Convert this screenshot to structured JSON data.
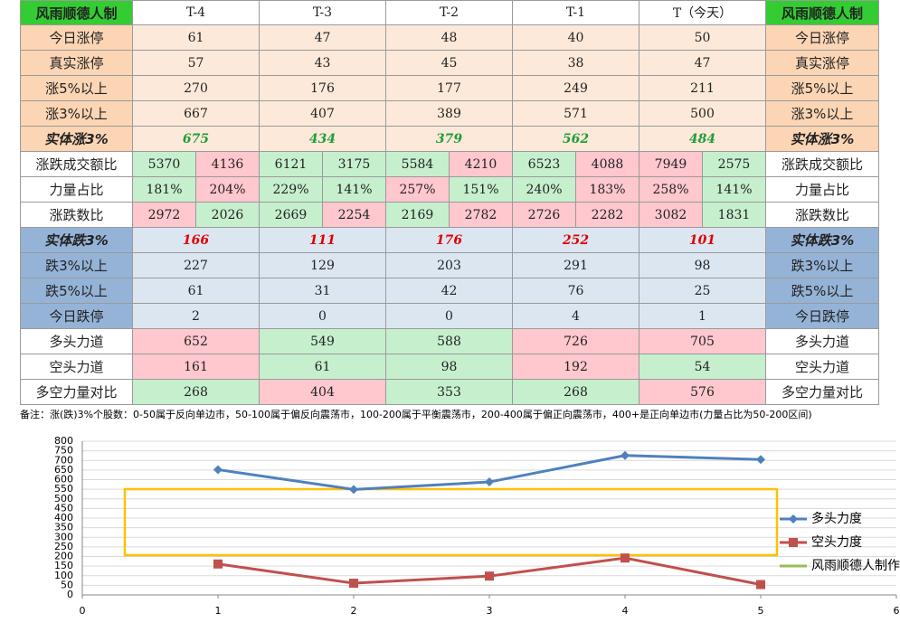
{
  "table": {
    "header": [
      "风雨顺德人制",
      "T-4",
      "T-3",
      "T-2",
      "T-1",
      "T（今天）",
      "风雨顺德人制"
    ],
    "rows": [
      {
        "kind": "up",
        "label": "今日涨停",
        "cells": [
          "61",
          "47",
          "48",
          "40",
          "50"
        ]
      },
      {
        "kind": "up",
        "label": "真实涨停",
        "cells": [
          "57",
          "43",
          "45",
          "38",
          "47"
        ]
      },
      {
        "kind": "up",
        "label": "涨5%以上",
        "cells": [
          "270",
          "176",
          "177",
          "249",
          "211"
        ]
      },
      {
        "kind": "up",
        "label": "涨3%以上",
        "cells": [
          "667",
          "407",
          "389",
          "571",
          "500"
        ]
      },
      {
        "kind": "upsum",
        "label": "实体涨3%",
        "cells": [
          "675",
          "434",
          "379",
          "562",
          "484"
        ]
      },
      {
        "kind": "pair",
        "label": "涨跌成交额比",
        "cells": [
          "5370",
          "4136",
          "6121",
          "3175",
          "5584",
          "4210",
          "6523",
          "4088",
          "7949",
          "2575"
        ],
        "fills": [
          "#c6efce",
          "#ffc7ce",
          "#c6efce",
          "#c6efce",
          "#c6efce",
          "#ffc7ce",
          "#c6efce",
          "#ffc7ce",
          "#ffc7ce",
          "#c6efce"
        ]
      },
      {
        "kind": "pair",
        "label": "力量占比",
        "cells": [
          "181%",
          "204%",
          "229%",
          "141%",
          "257%",
          "151%",
          "240%",
          "183%",
          "258%",
          "141%"
        ],
        "fills": [
          "#c6efce",
          "#ffc7ce",
          "#c6efce",
          "#c6efce",
          "#ffc7ce",
          "#c6efce",
          "#c6efce",
          "#ffc7ce",
          "#ffc7ce",
          "#c6efce"
        ]
      },
      {
        "kind": "pair",
        "label": "涨跌数比",
        "cells": [
          "2972",
          "2026",
          "2669",
          "2254",
          "2169",
          "2782",
          "2726",
          "2282",
          "3082",
          "1831"
        ],
        "fills": [
          "#ffc7ce",
          "#c6efce",
          "#c6efce",
          "#ffc7ce",
          "#c6efce",
          "#ffc7ce",
          "#ffc7ce",
          "#ffc7ce",
          "#ffc7ce",
          "#c6efce"
        ]
      },
      {
        "kind": "downsum",
        "label": "实体跌3%",
        "cells": [
          "166",
          "111",
          "176",
          "252",
          "101"
        ]
      },
      {
        "kind": "down",
        "label": "跌3%以上",
        "cells": [
          "227",
          "129",
          "203",
          "291",
          "98"
        ]
      },
      {
        "kind": "down",
        "label": "跌5%以上",
        "cells": [
          "61",
          "31",
          "42",
          "76",
          "25"
        ]
      },
      {
        "kind": "down",
        "label": "今日跌停",
        "cells": [
          "2",
          "0",
          "0",
          "4",
          "1"
        ]
      },
      {
        "kind": "plain",
        "label": "多头力道",
        "cells": [
          "652",
          "549",
          "588",
          "726",
          "705"
        ],
        "fills": [
          "#ffc7ce",
          "#c6efce",
          "#c6efce",
          "#ffc7ce",
          "#ffc7ce"
        ]
      },
      {
        "kind": "plain",
        "label": "空头力道",
        "cells": [
          "161",
          "61",
          "98",
          "192",
          "54"
        ],
        "fills": [
          "#ffc7ce",
          "#c6efce",
          "#c6efce",
          "#ffc7ce",
          "#c6efce"
        ]
      },
      {
        "kind": "plain",
        "label": "多空力量对比",
        "cells": [
          "268",
          "404",
          "353",
          "268",
          "576"
        ],
        "fills": [
          "#c6efce",
          "#ffc7ce",
          "#c6efce",
          "#c6efce",
          "#ffc7ce"
        ]
      }
    ],
    "note": "备注：涨(跌)3%个股数：0-50属于反向单边市，50-100属于偏反向震荡市，100-200属于平衡震荡市，200-400属于偏正向震荡市，400+是正向单边市(力量占比为50-200区间)"
  },
  "chart_data": {
    "type": "line",
    "x": [
      1,
      2,
      3,
      4,
      5
    ],
    "series": [
      {
        "name": "多头力度",
        "color": "#4f81bd",
        "values": [
          652,
          549,
          588,
          726,
          705
        ]
      },
      {
        "name": "空头力度",
        "color": "#c0504d",
        "values": [
          161,
          61,
          98,
          192,
          54
        ]
      },
      {
        "name": "风雨顺德人制作",
        "color": "#9bbb59",
        "values": [
          null,
          null,
          null,
          null,
          null
        ]
      }
    ],
    "xlim": [
      0,
      6
    ],
    "xticks": [
      0,
      1,
      2,
      3,
      4,
      5,
      6
    ],
    "ylim": [
      0,
      800
    ],
    "yticks": [
      0,
      50,
      100,
      150,
      200,
      250,
      300,
      350,
      400,
      450,
      500,
      550,
      600,
      650,
      700,
      750,
      800
    ],
    "grid": true
  }
}
